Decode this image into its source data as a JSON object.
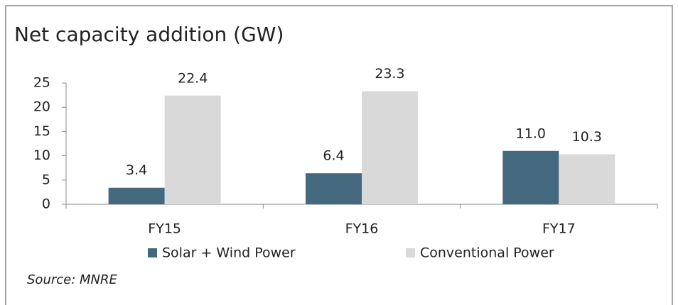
{
  "chart_data": {
    "type": "bar",
    "title": "Net capacity addition (GW)",
    "categories": [
      "FY15",
      "FY16",
      "FY17"
    ],
    "series": [
      {
        "name": "Solar + Wind Power",
        "color": "#44687e",
        "values": [
          3.4,
          6.4,
          11
        ],
        "value_labels": [
          "3.4",
          "6.4",
          "11.0"
        ]
      },
      {
        "name": "Conventional Power",
        "color": "#d9d9d9",
        "values": [
          22.4,
          23.3,
          10.3
        ],
        "value_labels": [
          "22.4",
          "23.3",
          "10.3"
        ]
      }
    ],
    "ylim": [
      0,
      25
    ],
    "yticks": [
      0,
      5,
      10,
      15,
      20,
      25
    ],
    "grid": false,
    "legend": "bottom",
    "source": "Source: MNRE"
  }
}
